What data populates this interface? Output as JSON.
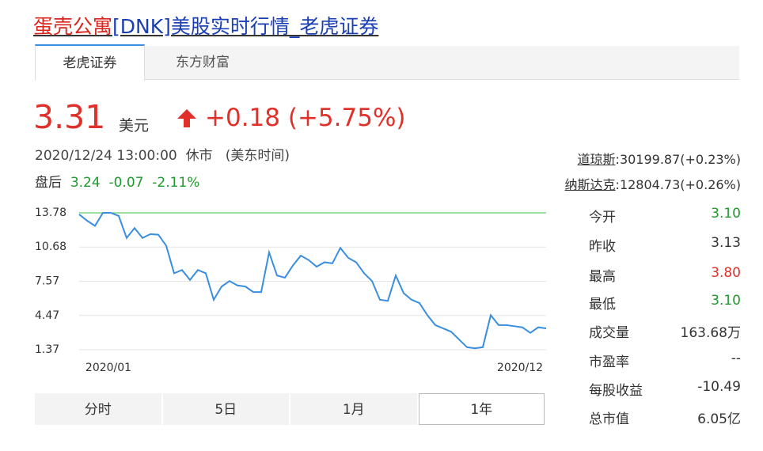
{
  "header": {
    "title_name": "蛋壳公寓",
    "title_rest": "[DNK]美股实时行情_老虎证券"
  },
  "tabs": [
    "老虎证券",
    "东方财富"
  ],
  "quote": {
    "price": "3.31",
    "currency": "美元",
    "change": "+0.18",
    "change_pct": "(+5.75%)",
    "time": "2020/12/24 13:00:00",
    "status": "休市",
    "timezone": "(美东时间)",
    "after_label": "盘后",
    "after_price": "3.24",
    "after_change": "-0.07",
    "after_pct": "-2.11%"
  },
  "indices": [
    {
      "name": "道琼斯",
      "value": ":30199.87(+0.23%)"
    },
    {
      "name": "纳斯达克",
      "value": ":12804.73(+0.26%)"
    }
  ],
  "stats": [
    {
      "label": "今开",
      "value": "3.10",
      "color": "#1e9a2c"
    },
    {
      "label": "昨收",
      "value": "3.13",
      "color": "#333333"
    },
    {
      "label": "最高",
      "value": "3.80",
      "color": "#e0302a"
    },
    {
      "label": "最低",
      "value": "3.10",
      "color": "#1e9a2c"
    },
    {
      "label": "成交量",
      "value": "163.68万",
      "color": "#333333"
    },
    {
      "label": "市盈率",
      "value": "--",
      "color": "#333333"
    },
    {
      "label": "每股收益",
      "value": "-10.49",
      "color": "#333333"
    },
    {
      "label": "总市值",
      "value": "6.05亿",
      "color": "#333333"
    }
  ],
  "periods": [
    "分时",
    "5日",
    "1月",
    "1年"
  ],
  "chart_data": {
    "type": "line",
    "color": "#3a8ee0",
    "x_labels": [
      "2020/01",
      "2020/12"
    ],
    "ylim": [
      1.37,
      13.78
    ],
    "yticks": [
      13.78,
      10.68,
      7.57,
      4.47,
      1.37
    ],
    "values": [
      13.64,
      13.07,
      12.6,
      13.78,
      13.78,
      13.5,
      11.5,
      12.4,
      11.5,
      11.85,
      11.8,
      10.8,
      8.3,
      8.6,
      7.7,
      8.6,
      8.3,
      5.9,
      7.1,
      7.6,
      7.2,
      7.1,
      6.6,
      6.6,
      10.2,
      8.1,
      7.9,
      9.0,
      9.9,
      9.5,
      8.9,
      9.3,
      9.2,
      10.6,
      9.7,
      9.3,
      8.3,
      7.6,
      5.9,
      5.8,
      8.1,
      6.5,
      5.9,
      5.6,
      4.5,
      3.6,
      3.3,
      3.0,
      2.3,
      1.6,
      1.5,
      1.6,
      4.5,
      3.6,
      3.6,
      3.5,
      3.4,
      2.9,
      3.4,
      3.31
    ]
  }
}
